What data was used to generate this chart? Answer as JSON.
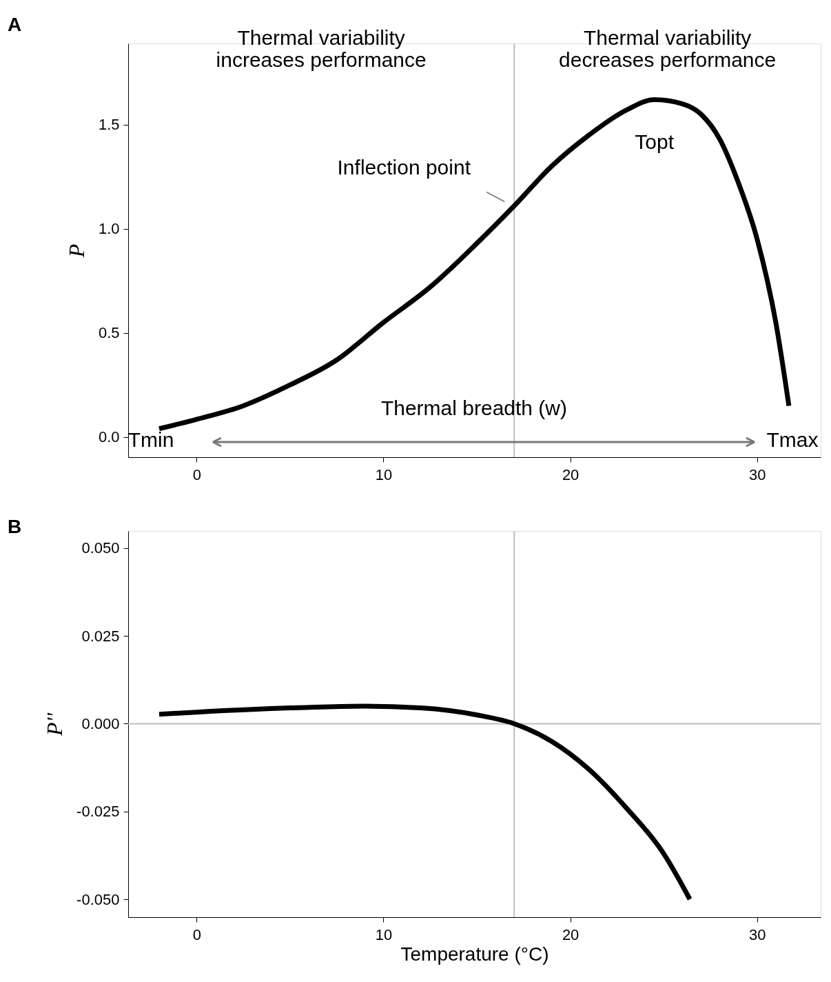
{
  "chart_data": [
    {
      "type": "line",
      "title": "A",
      "ylabel": "P",
      "x": [
        -2,
        0,
        2.5,
        5,
        7.5,
        10,
        12.5,
        15,
        17,
        19,
        21,
        23,
        24.5,
        26,
        27,
        28,
        29,
        30,
        31,
        31.7
      ],
      "series": [
        {
          "color": "#000000",
          "values": [
            0.04,
            0.085,
            0.15,
            0.25,
            0.37,
            0.55,
            0.72,
            0.93,
            1.11,
            1.3,
            1.45,
            1.57,
            1.62,
            1.6,
            1.55,
            1.43,
            1.22,
            0.95,
            0.55,
            0.15
          ]
        }
      ],
      "xlim": [
        -3.66,
        33.4
      ],
      "ylim": [
        -0.097,
        1.89
      ],
      "xticks": [
        0,
        10,
        20,
        30
      ],
      "yticks": [
        {
          "value": 0,
          "label": "0.0"
        },
        {
          "value": 0.5,
          "label": "0.5"
        },
        {
          "value": 1,
          "label": "1.0"
        },
        {
          "value": 1.5,
          "label": "1.5"
        }
      ],
      "ref_lines": [
        {
          "axis": "x",
          "value": 17,
          "color": "#bdbdbd"
        }
      ],
      "annotations": [
        "Thermal variability\nincreases performance",
        "Thermal variability\ndecreases performance",
        {
          "text": "Inflection point",
          "x": 17,
          "y": 1.11
        },
        "Topt",
        "Tmin",
        "Tmax",
        "Thermal breadth (w)"
      ],
      "grid": false,
      "marker": "none",
      "line_style": "solid"
    },
    {
      "type": "line",
      "title": "B",
      "xlabel": "Temperature (°C)",
      "ylabel": "P''",
      "x": [
        -2,
        0,
        5,
        9,
        12,
        15,
        17,
        19,
        21,
        23,
        25,
        26.4
      ],
      "series": [
        {
          "color": "#000000",
          "values": [
            0.0027,
            0.0033,
            0.0045,
            0.005,
            0.0045,
            0.0025,
            0,
            -0.005,
            -0.013,
            -0.024,
            -0.037,
            -0.05
          ]
        }
      ],
      "xlim": [
        -3.66,
        33.4
      ],
      "ylim": [
        -0.0551,
        0.0549
      ],
      "xticks": [
        0,
        10,
        20,
        30
      ],
      "yticks": [
        {
          "value": 0.05,
          "label": "0.050"
        },
        {
          "value": 0.025,
          "label": "0.025"
        },
        {
          "value": 0,
          "label": "0.000"
        },
        {
          "value": -0.025,
          "label": "-0.025"
        },
        {
          "value": -0.05,
          "label": "-0.050"
        }
      ],
      "ref_lines": [
        {
          "axis": "x",
          "value": 17,
          "color": "#bdbdbd"
        },
        {
          "axis": "y",
          "value": 0,
          "color": "#bdbdbd"
        }
      ],
      "grid": false,
      "marker": "none",
      "line_style": "solid"
    }
  ]
}
